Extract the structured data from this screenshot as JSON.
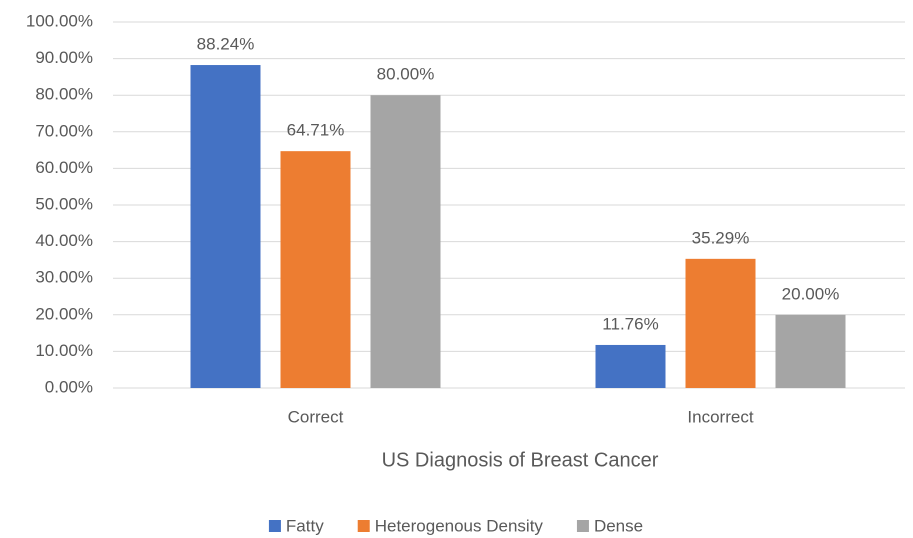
{
  "chart_data": {
    "type": "bar",
    "x_label": "US Diagnosis of Breast Cancer",
    "categories": [
      "Correct",
      "Incorrect"
    ],
    "series": [
      {
        "name": "Fatty",
        "color": "#4472c4",
        "values": [
          88.24,
          11.76
        ],
        "value_labels": [
          "88.24%",
          "11.76%"
        ]
      },
      {
        "name": "Heterogenous Density",
        "color": "#ed7d31",
        "values": [
          64.71,
          35.29
        ],
        "value_labels": [
          "64.71%",
          "35.29%"
        ]
      },
      {
        "name": "Dense",
        "color": "#a5a5a5",
        "values": [
          80,
          20
        ],
        "value_labels": [
          "80.00%",
          "20.00%"
        ]
      }
    ],
    "ylim": [
      0,
      100
    ],
    "yticks": [
      {
        "value": 0,
        "label": "0.00%"
      },
      {
        "value": 10,
        "label": "10.00%"
      },
      {
        "value": 20,
        "label": "20.00%"
      },
      {
        "value": 30,
        "label": "30.00%"
      },
      {
        "value": 40,
        "label": "40.00%"
      },
      {
        "value": 50,
        "label": "50.00%"
      },
      {
        "value": 60,
        "label": "60.00%"
      },
      {
        "value": 70,
        "label": "70.00%"
      },
      {
        "value": 80,
        "label": "80.00%"
      },
      {
        "value": 90,
        "label": "90.00%"
      },
      {
        "value": 100,
        "label": "100.00%"
      }
    ],
    "grid": true,
    "legend": "bottom"
  }
}
